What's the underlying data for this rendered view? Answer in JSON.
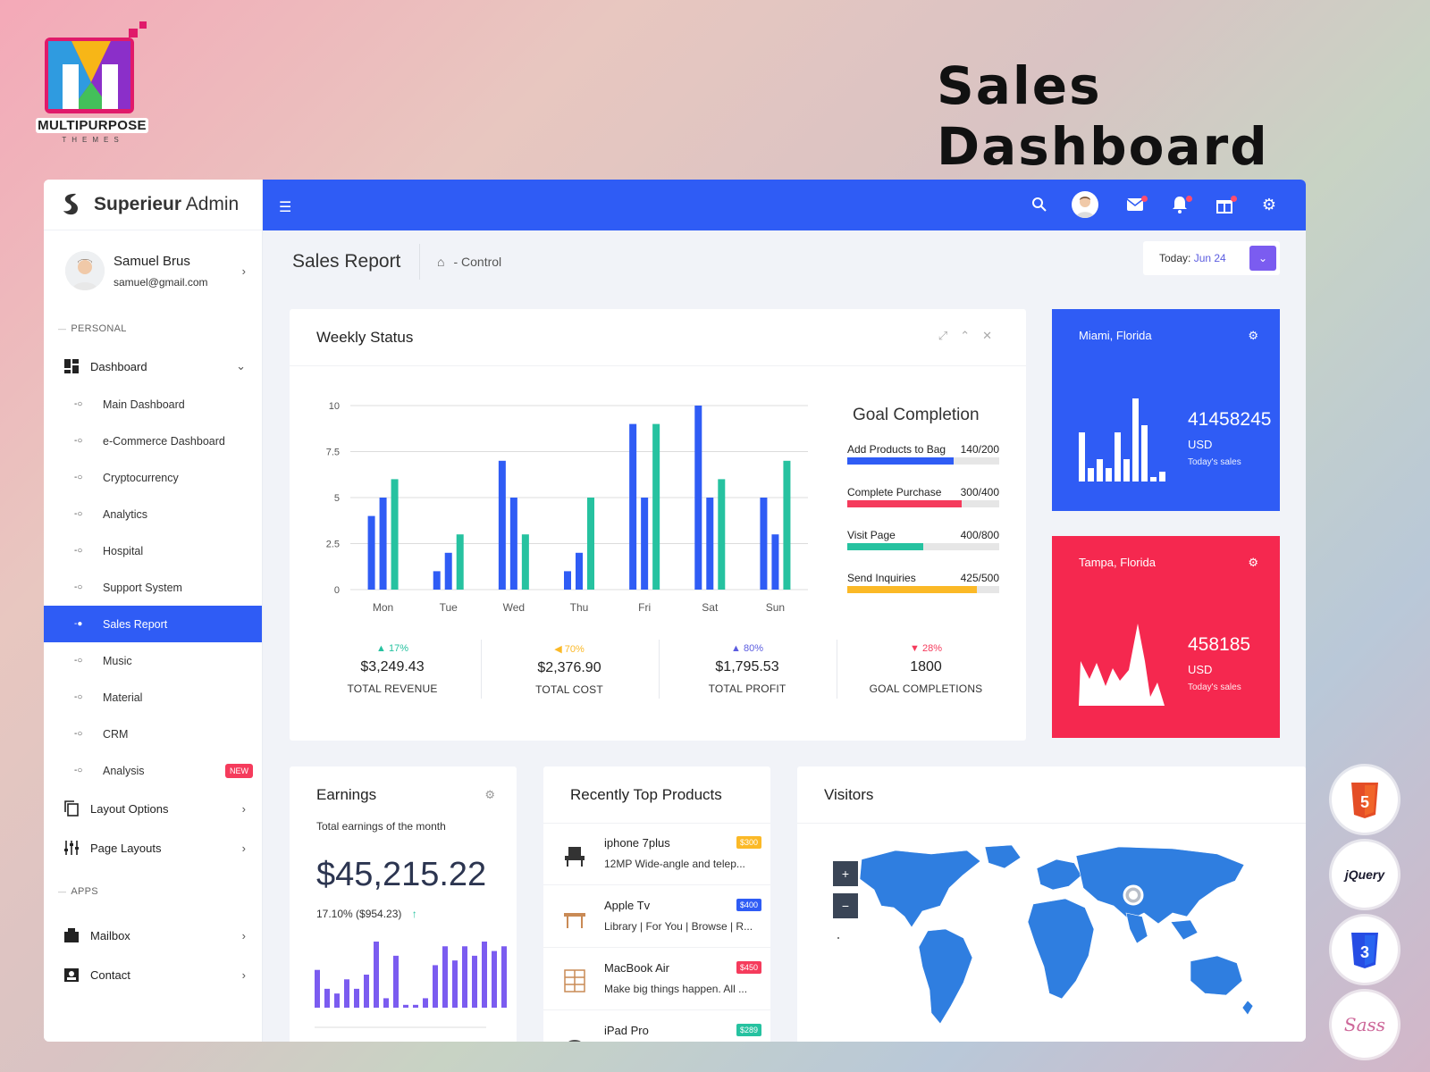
{
  "brand_header": {
    "logo_text": "MULTIPURPOSE",
    "logo_sub": "THEMES",
    "page_heading": "Sales Dashboard"
  },
  "app": {
    "name_bold": "Superieur",
    "name_rest": " Admin"
  },
  "user": {
    "name": "Samuel Brus",
    "email": "samuel@gmail.com"
  },
  "sidebar": {
    "personal_label": "PERSONAL",
    "dashboard_label": "Dashboard",
    "sub_items": [
      {
        "label": "Main Dashboard"
      },
      {
        "label": "e-Commerce Dashboard"
      },
      {
        "label": "Cryptocurrency"
      },
      {
        "label": "Analytics"
      },
      {
        "label": "Hospital"
      },
      {
        "label": "Support System"
      },
      {
        "label": "Sales Report"
      },
      {
        "label": "Music"
      },
      {
        "label": "Material"
      },
      {
        "label": "CRM"
      },
      {
        "label": "Analysis"
      }
    ],
    "active_item": "Sales Report",
    "new_badge": "NEW",
    "layout_options": "Layout Options",
    "page_layouts": "Page Layouts",
    "apps_label": "APPS",
    "mailbox": "Mailbox",
    "contact": "Contact"
  },
  "topbar": {
    "accent": "#2f5cf5",
    "icons": [
      "menu-icon",
      "search-icon",
      "avatar",
      "mail-icon",
      "bell-icon",
      "gift-icon",
      "gear-icon"
    ]
  },
  "header": {
    "title": "Sales Report",
    "breadcrumb": "- Control",
    "today_label": "Today:",
    "today_value": "Jun 24"
  },
  "weekly": {
    "title": "Weekly Status"
  },
  "chart_data": {
    "type": "bar",
    "categories": [
      "Mon",
      "Tue",
      "Wed",
      "Thu",
      "Fri",
      "Sat",
      "Sun"
    ],
    "series": [
      {
        "values": [
          4,
          1,
          7,
          1,
          9,
          10,
          5
        ],
        "color": "#2f5cf5"
      },
      {
        "values": [
          5,
          2,
          5,
          2,
          5,
          5,
          3
        ],
        "color": "#2f5cf5"
      },
      {
        "values": [
          6,
          3,
          3,
          5,
          9,
          6,
          7
        ],
        "color": "#26c2a0"
      }
    ],
    "y_ticks": [
      "0",
      "2.5",
      "5",
      "7.5",
      "10"
    ],
    "ylim": [
      0,
      10
    ],
    "grid": true
  },
  "goals": {
    "title": "Goal Completion",
    "items": [
      {
        "label": "Add Products to Bag",
        "value": "140/200",
        "fraction": 0.7,
        "color": "#2f5cf5"
      },
      {
        "label": "Complete Purchase",
        "value": "300/400",
        "fraction": 0.75,
        "color": "#f53b5c"
      },
      {
        "label": "Visit Page",
        "value": "400/800",
        "fraction": 0.5,
        "color": "#26c2a0"
      },
      {
        "label": "Send Inquiries",
        "value": "425/500",
        "fraction": 0.85,
        "color": "#fbb927"
      }
    ]
  },
  "stats": [
    {
      "pct": "17%",
      "arrow": "▲",
      "color": "#26c2a0",
      "value": "$3,249.43",
      "label": "TOTAL REVENUE"
    },
    {
      "pct": "70%",
      "arrow": "◀",
      "color": "#fbb927",
      "value": "$2,376.90",
      "label": "TOTAL COST"
    },
    {
      "pct": "80%",
      "arrow": "▲",
      "color": "#5b5ce0",
      "value": "$1,795.53",
      "label": "TOTAL PROFIT"
    },
    {
      "pct": "28%",
      "arrow": "▼",
      "color": "#f53b5c",
      "value": "1800",
      "label": "GOAL COMPLETIONS"
    }
  ],
  "cities": [
    {
      "name": "Miami, Florida",
      "value": "41458245",
      "currency": "USD",
      "sub": "Today's sales",
      "color": "#2f5cf5"
    },
    {
      "name": "Tampa, Florida",
      "value": "458185",
      "currency": "USD",
      "sub": "Today's sales",
      "color": "#f5284f"
    }
  ],
  "earnings": {
    "title": "Earnings",
    "subtitle": "Total earnings of the month",
    "amount": "$45,215.22",
    "change": "17.10% ($954.23)",
    "spark": [
      4,
      2,
      1.5,
      3,
      2,
      3.5,
      7,
      1,
      5.5,
      0.3,
      0.3,
      1,
      4.5,
      6.5,
      5,
      6.5,
      5.5,
      7,
      6,
      6.5
    ]
  },
  "products": {
    "title": "Recently Top Products",
    "items": [
      {
        "name": "iphone 7plus",
        "desc": "12MP Wide-angle and telep...",
        "price": "$300",
        "color": "#fbb927"
      },
      {
        "name": "Apple Tv",
        "desc": "Library | For You | Browse | R...",
        "price": "$400",
        "color": "#2f5cf5"
      },
      {
        "name": "MacBook Air",
        "desc": "Make big things happen. All ...",
        "price": "$450",
        "color": "#f53b5c"
      },
      {
        "name": "iPad Pro",
        "desc": "",
        "price": "$289",
        "color": "#26c2a0"
      }
    ]
  },
  "visitors": {
    "title": "Visitors",
    "zoom_in": "+",
    "zoom_out": "−"
  },
  "tech_badges": [
    {
      "label": "HTML"
    },
    {
      "label": "jQuery"
    },
    {
      "label": "CSS"
    },
    {
      "label": "Sass"
    }
  ]
}
